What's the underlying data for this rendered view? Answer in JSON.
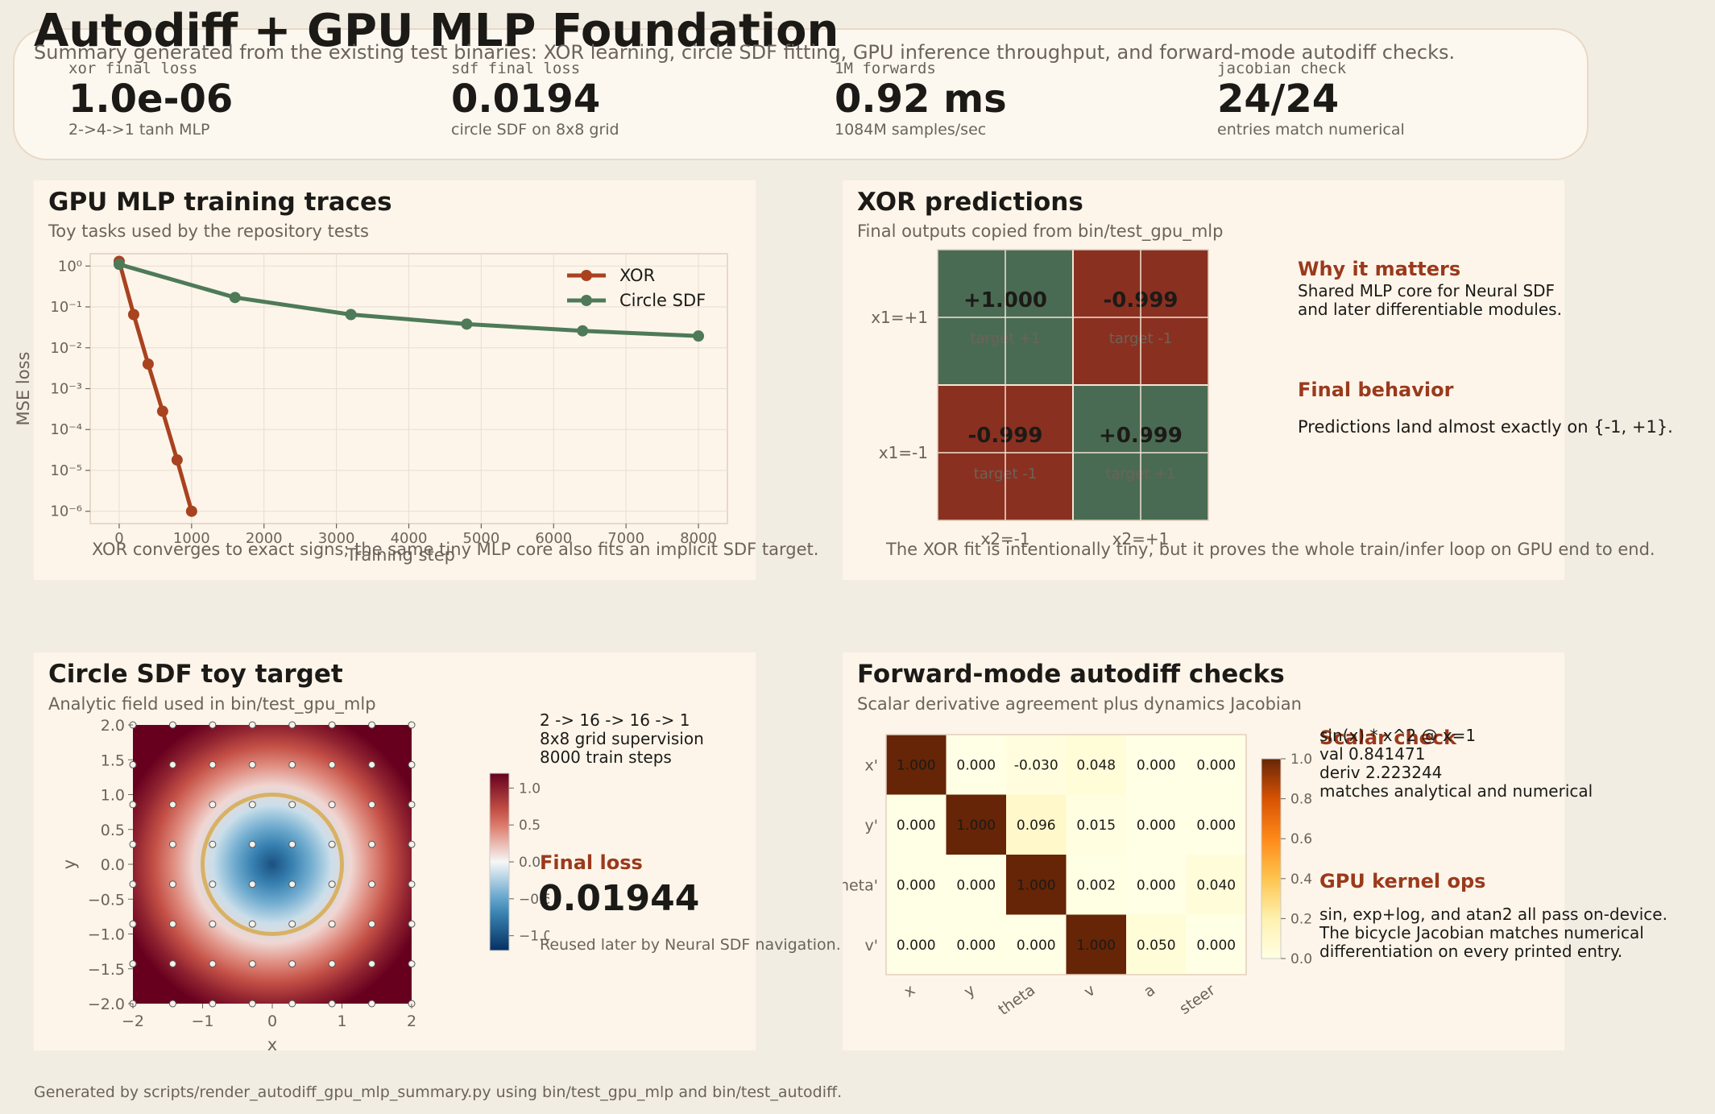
{
  "title": "Autodiff + GPU MLP Foundation",
  "subtitle": "Summary generated from the existing test binaries: XOR learning, circle SDF fitting, GPU inference throughput, and forward-mode autodiff checks.",
  "metrics": [
    {
      "label": "xor final loss",
      "value": "1.0e-06",
      "note": "2->4->1 tanh MLP"
    },
    {
      "label": "sdf final loss",
      "value": "0.0194",
      "note": "circle SDF on 8x8 grid"
    },
    {
      "label": "1M forwards",
      "value": "0.92 ms",
      "note": "1084M samples/sec"
    },
    {
      "label": "jacobian check",
      "value": "24/24",
      "note": "entries match numerical"
    }
  ],
  "training": {
    "title": "GPU MLP training traces",
    "subtitle": "Toy tasks used by the repository tests",
    "footer": "XOR converges to exact signs; the same tiny MLP core also fits an implicit SDF target.",
    "chart_data": {
      "type": "line",
      "xlabel": "Training step",
      "ylabel": "MSE loss",
      "yscale": "log",
      "ylim": [
        5e-07,
        2
      ],
      "xlim": [
        -400,
        8400
      ],
      "x_ticks": [
        "0",
        "1000",
        "2000",
        "3000",
        "4000",
        "5000",
        "6000",
        "7000",
        "8000"
      ],
      "y_ticks": [
        "10⁰",
        "10⁻¹",
        "10⁻²",
        "10⁻³",
        "10⁻⁴",
        "10⁻⁵",
        "10⁻⁶"
      ],
      "grid": true,
      "legend": "top-right",
      "series": [
        {
          "name": "XOR",
          "color": "#a9421f",
          "x": [
            0,
            200,
            400,
            600,
            800,
            1000
          ],
          "y": [
            1.3,
            0.065,
            0.004,
            0.00028,
            1.8e-05,
            1e-06
          ]
        },
        {
          "name": "Circle SDF",
          "color": "#4e7a58",
          "x": [
            0,
            1600,
            3200,
            4800,
            6400,
            8000
          ],
          "y": [
            1.1,
            0.17,
            0.065,
            0.038,
            0.026,
            0.0194
          ]
        }
      ]
    }
  },
  "xor": {
    "title": "XOR predictions",
    "subtitle": "Final outputs copied from bin/test_gpu_mlp",
    "footer": "The XOR fit is intentionally tiny, but it proves the whole train/infer loop on GPU end to end.",
    "chart_data": {
      "type": "heatmap",
      "rows": [
        "x1=+1",
        "x1=-1"
      ],
      "cols": [
        "x2=-1",
        "x2=+1"
      ],
      "values": [
        [
          1.0,
          -0.999
        ],
        [
          -0.999,
          0.999
        ]
      ],
      "cell_text": [
        [
          "+1.000",
          "-0.999"
        ],
        [
          "-0.999",
          "+0.999"
        ]
      ],
      "targets": [
        [
          "target +1",
          "target -1"
        ],
        [
          "target -1",
          "target +1"
        ]
      ],
      "colors": {
        "positive": "#4a6b53",
        "negative": "#8a3020"
      }
    },
    "why_title": "Why it matters",
    "why_text": "Shared MLP core for Neural SDF\nand later differentiable modules.",
    "behavior_title": "Final behavior",
    "behavior_text": "Predictions land almost exactly on {-1, +1}."
  },
  "sdf": {
    "title": "Circle SDF toy target",
    "subtitle": "Analytic field used in bin/test_gpu_mlp",
    "chart_data": {
      "type": "heatmap",
      "xlabel": "x",
      "ylabel": "y",
      "xlim": [
        -2,
        2
      ],
      "ylim": [
        -2,
        2
      ],
      "x_ticks": [
        "−2",
        "−1",
        "0",
        "1",
        "2"
      ],
      "y_ticks": [
        "2.0",
        "1.5",
        "1.0",
        "0.5",
        "0.0",
        "−0.5",
        "−1.0",
        "−1.5",
        "−2.0"
      ],
      "circle_radius": 1.0,
      "grid_points": 8,
      "colorbar_ticks": [
        "1.0",
        "0.5",
        "0.0",
        "−0.5",
        "−1.0"
      ],
      "colorbar_range": [
        -1.2,
        1.2
      ]
    },
    "arch_text": "2 -> 16 -> 16 -> 1\n8x8 grid supervision\n8000 train steps",
    "loss_title": "Final loss",
    "loss_value": "0.01944",
    "loss_note": "Reused later by Neural SDF navigation."
  },
  "autodiff": {
    "title": "Forward-mode autodiff checks",
    "subtitle": "Scalar derivative agreement plus dynamics Jacobian",
    "chart_data": {
      "type": "heatmap",
      "rows": [
        "x'",
        "y'",
        "theta'",
        "v'"
      ],
      "cols": [
        "x",
        "y",
        "theta",
        "v",
        "a",
        "steer"
      ],
      "values": [
        [
          1.0,
          0.0,
          -0.03,
          0.048,
          0.0,
          0.0
        ],
        [
          0.0,
          1.0,
          0.096,
          0.015,
          0.0,
          0.0
        ],
        [
          0.0,
          0.0,
          1.0,
          0.002,
          0.0,
          0.04
        ],
        [
          0.0,
          0.0,
          0.0,
          1.0,
          0.05,
          0.0
        ]
      ],
      "colorbar_ticks": [
        "1.0",
        "0.8",
        "0.6",
        "0.4",
        "0.2",
        "0.0"
      ],
      "vmin": 0,
      "vmax": 1
    },
    "scalar_title": "Scalar check",
    "scalar_text": "sin(x) * x^2 @ x=1\nval 0.841471\nderiv 2.223244\nmatches analytical and numerical",
    "kernel_title": "GPU kernel ops",
    "kernel_text": "sin, exp+log, and atan2 all pass on-device.\nThe bicycle Jacobian matches numerical\ndifferentiation on every printed entry."
  },
  "footer": "Generated by scripts/render_autodiff_gpu_mlp_summary.py using bin/test_gpu_mlp and bin/test_autodiff."
}
